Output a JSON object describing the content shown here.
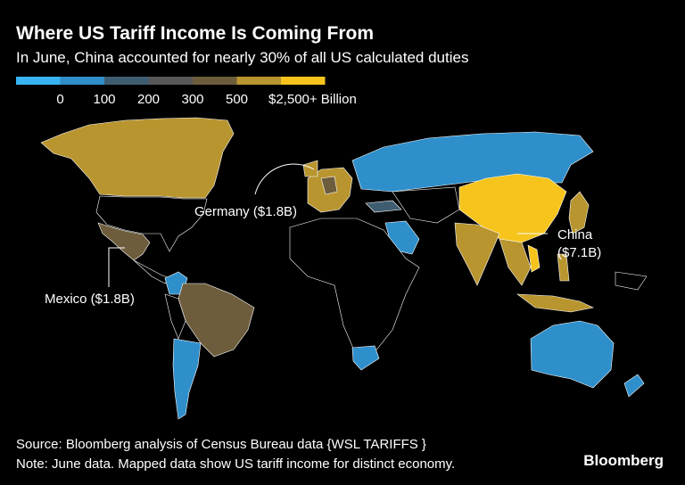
{
  "header": {
    "title": "Where US Tariff Income Is Coming From",
    "subtitle": "In June, China accounted for nearly 30% of all US calculated duties"
  },
  "legend": {
    "colors": [
      "#38b4f2",
      "#2f8fcb",
      "#3f5d70",
      "#58585a",
      "#6e5d3c",
      "#b9952f",
      "#f6c41c"
    ],
    "labels": [
      "0",
      "100",
      "200",
      "300",
      "500",
      "$2,500+ Billion"
    ]
  },
  "annotations": {
    "germany": "Germany ($1.8B)",
    "mexico": "Mexico ($1.8B)",
    "china": [
      "China",
      "($7.1B)"
    ]
  },
  "footer": {
    "source": "Source: Bloomberg analysis of Census Bureau data {WSL TARIFFS }",
    "note": "Note: June data. Mapped data show US tariff income for distinct economy.",
    "logo": "Bloomberg"
  }
}
